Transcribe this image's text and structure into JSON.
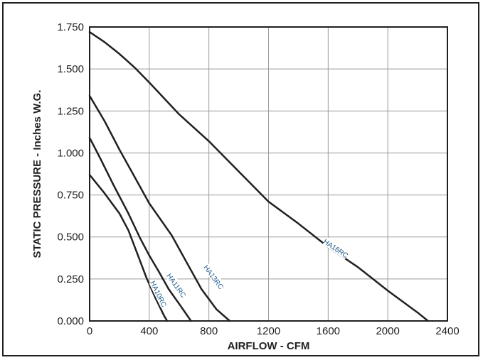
{
  "chart_data": {
    "type": "line",
    "xlabel": "AIRFLOW - CFM",
    "ylabel": "STATIC PRESSURE - Inches W.G.",
    "xlim": [
      0,
      2400
    ],
    "ylim": [
      0,
      1.75
    ],
    "x_ticks": [
      "0",
      "400",
      "800",
      "1200",
      "1600",
      "2000",
      "2400"
    ],
    "y_ticks": [
      "0.000",
      "0.250",
      "0.500",
      "0.750",
      "1.000",
      "1.250",
      "1.500",
      "1.750"
    ],
    "grid": true,
    "series": [
      {
        "name": "HA10RC",
        "label_at": [
          460,
          0.16
        ],
        "points": [
          [
            0,
            0.87
          ],
          [
            100,
            0.76
          ],
          [
            200,
            0.64
          ],
          [
            260,
            0.54
          ],
          [
            320,
            0.4
          ],
          [
            380,
            0.26
          ],
          [
            440,
            0.14
          ],
          [
            500,
            0.03
          ],
          [
            520,
            0.0
          ]
        ]
      },
      {
        "name": "HA11RC",
        "label_at": [
          580,
          0.21
        ],
        "points": [
          [
            0,
            1.09
          ],
          [
            70,
            0.97
          ],
          [
            160,
            0.81
          ],
          [
            260,
            0.64
          ],
          [
            340,
            0.49
          ],
          [
            400,
            0.39
          ],
          [
            460,
            0.3
          ],
          [
            530,
            0.19
          ],
          [
            610,
            0.09
          ],
          [
            680,
            0.0
          ]
        ]
      },
      {
        "name": "HA13RC",
        "label_at": [
          830,
          0.26
        ],
        "points": [
          [
            0,
            1.34
          ],
          [
            100,
            1.19
          ],
          [
            200,
            1.02
          ],
          [
            300,
            0.86
          ],
          [
            400,
            0.7
          ],
          [
            550,
            0.51
          ],
          [
            650,
            0.35
          ],
          [
            750,
            0.19
          ],
          [
            850,
            0.07
          ],
          [
            940,
            0.0
          ]
        ]
      },
      {
        "name": "HA16RC",
        "label_at": [
          1650,
          0.43
        ],
        "points": [
          [
            0,
            1.72
          ],
          [
            100,
            1.66
          ],
          [
            200,
            1.59
          ],
          [
            300,
            1.51
          ],
          [
            400,
            1.42
          ],
          [
            600,
            1.23
          ],
          [
            800,
            1.07
          ],
          [
            1000,
            0.89
          ],
          [
            1200,
            0.71
          ],
          [
            1400,
            0.58
          ],
          [
            1600,
            0.44
          ],
          [
            1800,
            0.32
          ],
          [
            2000,
            0.18
          ],
          [
            2200,
            0.05
          ],
          [
            2270,
            0.0
          ]
        ]
      }
    ]
  }
}
